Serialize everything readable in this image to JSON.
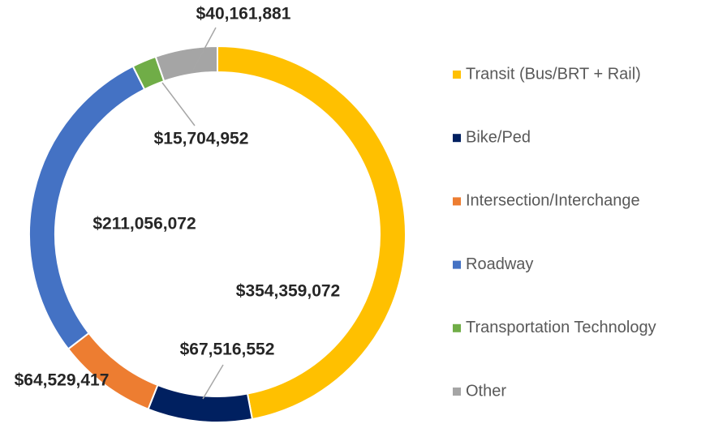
{
  "chart_data": {
    "type": "donut",
    "categories": [
      "Transit (Bus/BRT + Rail)",
      "Bike/Ped",
      "Intersection/Interchange",
      "Roadway",
      "Transportation Technology",
      "Other"
    ],
    "values": [
      354359072,
      67516552,
      64529417,
      211056072,
      15704952,
      40161881
    ],
    "value_labels": [
      "$354,359,072",
      "$67,516,552",
      "$64,529,417",
      "$211,056,072",
      "$15,704,952",
      "$40,161,881"
    ],
    "colors": [
      "#FFC000",
      "#002060",
      "#ED7D31",
      "#4472C4",
      "#70AD47",
      "#A5A5A5"
    ],
    "legend": "right"
  }
}
